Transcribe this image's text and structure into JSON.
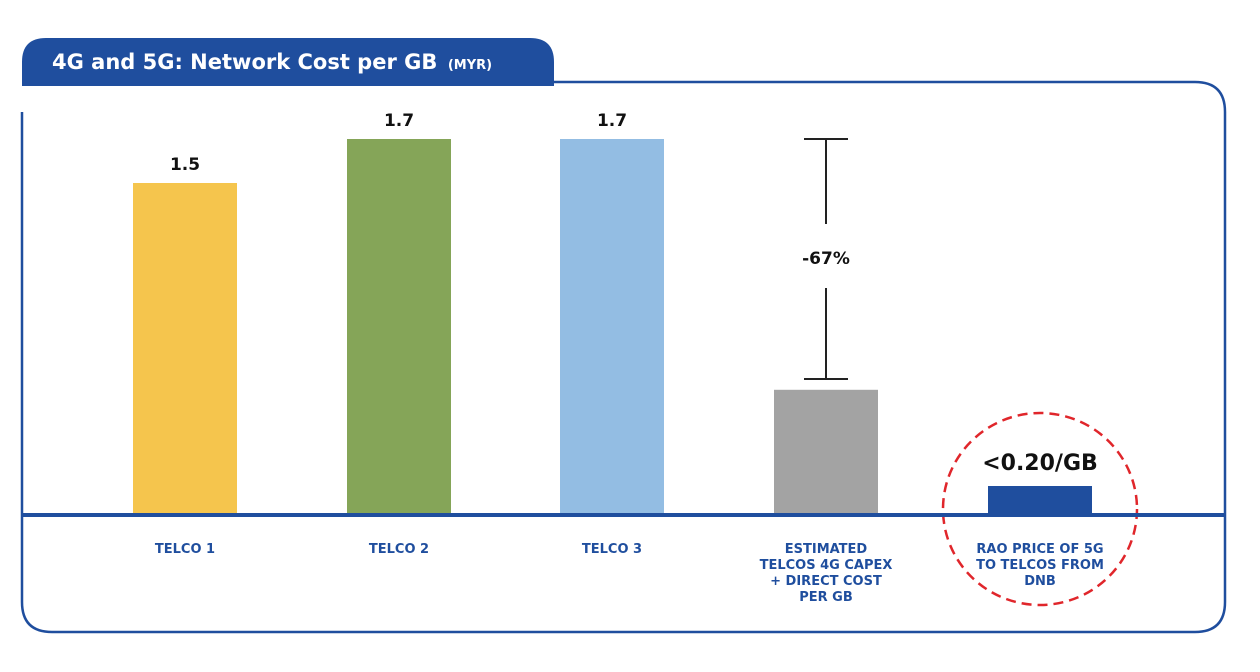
{
  "title": {
    "main": "4G and 5G: Network Cost per GB",
    "unit": "(MYR)"
  },
  "colors": {
    "frame": "#1f4e9e",
    "axis": "#1f4e9e",
    "category_text": "#1f4e9e",
    "highlight_circle": "#e0262b"
  },
  "chart_data": {
    "type": "bar",
    "title": "4G and 5G: Network Cost per GB (MYR)",
    "xlabel": "",
    "ylabel": "",
    "ylim": [
      0,
      1.8
    ],
    "grid": false,
    "legend": "none",
    "categories": [
      [
        "TELCO 1"
      ],
      [
        "TELCO 2"
      ],
      [
        "TELCO 3"
      ],
      [
        "ESTIMATED",
        "TELCOS 4G CAPEX",
        "+ DIRECT COST",
        "PER GB"
      ],
      [
        "RAO PRICE OF 5G",
        "TO TELCOS FROM",
        "DNB"
      ]
    ],
    "values": [
      1.5,
      1.7,
      1.7,
      0.56,
      0.2
    ],
    "value_labels": [
      "1.5",
      "1.7",
      "1.7",
      "",
      ""
    ],
    "bar_colors": [
      "#f5c54d",
      "#85a558",
      "#93bde3",
      "#a3a3a3",
      "#1f4e9e"
    ],
    "annotations": {
      "reduction": {
        "label": "-67%",
        "from_value": 1.7,
        "to_value": 0.56,
        "category_index": 3
      },
      "highlight": {
        "label": "<0.20/GB",
        "category_index": 4
      }
    }
  }
}
